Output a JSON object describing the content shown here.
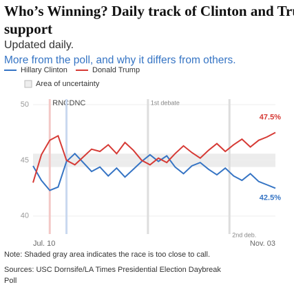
{
  "chart_data": {
    "type": "line",
    "title": "Who’s Winning? Daily track of Clinton and Trump’s support",
    "subtitle": "Updated daily.",
    "link": "More from the poll, and why it differs from others.",
    "uncertainty_label": "Area of uncertainty",
    "uncertainty_range": [
      44.4,
      45.6
    ],
    "x": [
      0,
      4,
      8,
      12,
      16,
      20,
      24,
      28,
      32,
      36,
      40,
      44,
      48,
      52,
      56,
      60,
      64,
      68,
      72,
      76,
      80,
      84,
      88,
      92,
      96,
      100,
      104,
      108,
      112,
      116
    ],
    "xlim": [
      0,
      116
    ],
    "xticks": [
      {
        "value": 0,
        "label": "Jul. 10"
      },
      {
        "value": 116,
        "label": "Nov. 03"
      }
    ],
    "ylim": [
      39,
      50
    ],
    "yticks": [
      40,
      45,
      50
    ],
    "events": [
      {
        "label": "RNC",
        "x": 8,
        "color": "#f3c9c7"
      },
      {
        "label": "DNC",
        "x": 16,
        "color": "#c9d8ef"
      },
      {
        "label": "1st debate",
        "x": 55,
        "color": "#dddddd"
      },
      {
        "label": "2nd deb.",
        "x": 94,
        "color": "#dddddd"
      }
    ],
    "series": [
      {
        "name": "Hillary Clinton",
        "color": "#3574c4",
        "values": [
          44.5,
          43.2,
          42.3,
          42.6,
          44.9,
          45.6,
          44.8,
          44,
          44.4,
          43.6,
          44.3,
          43.5,
          44.2,
          44.9,
          45.5,
          44.9,
          45.4,
          44.4,
          43.8,
          44.5,
          44.8,
          44.2,
          43.7,
          44.3,
          43.6,
          43.2,
          43.8,
          43.1,
          42.8,
          42.5
        ],
        "end_label": "42.5%"
      },
      {
        "name": "Donald Trump",
        "color": "#d63a35",
        "values": [
          43,
          45.5,
          46.8,
          47.2,
          45,
          44.6,
          45.3,
          46,
          45.8,
          46.4,
          45.6,
          46.6,
          45.9,
          45,
          44.6,
          45.2,
          44.8,
          45.6,
          46.3,
          45.7,
          45.2,
          45.9,
          46.5,
          45.8,
          46.4,
          46.9,
          46.2,
          46.8,
          47.1,
          47.5
        ],
        "end_label": "47.5%"
      }
    ],
    "note": "Note: Shaded gray area indicates the race is too close to call.",
    "source": [
      "Sources: USC Dornsife/LA Times Presidential Election Daybreak",
      "Poll"
    ]
  }
}
